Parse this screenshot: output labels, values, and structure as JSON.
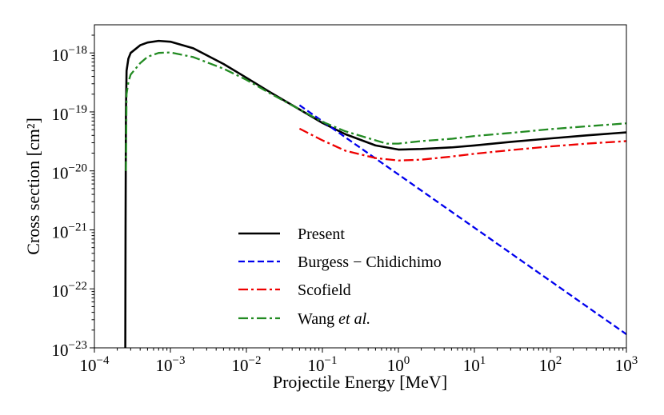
{
  "chart_data": {
    "type": "line",
    "xlabel": "Projectile Energy [MeV]",
    "ylabel": "Cross section [cm²]",
    "xscale": "log",
    "yscale": "log",
    "xlim": [
      0.0001,
      1000
    ],
    "ylim": [
      1e-23,
      3e-18
    ],
    "x_ticks": [
      {
        "base": "10",
        "exp": "−4",
        "value": 0.0001
      },
      {
        "base": "10",
        "exp": "−3",
        "value": 0.001
      },
      {
        "base": "10",
        "exp": "−2",
        "value": 0.01
      },
      {
        "base": "10",
        "exp": "−1",
        "value": 0.1
      },
      {
        "base": "10",
        "exp": "0",
        "value": 1
      },
      {
        "base": "10",
        "exp": "1",
        "value": 10
      },
      {
        "base": "10",
        "exp": "2",
        "value": 100
      },
      {
        "base": "10",
        "exp": "3",
        "value": 1000
      }
    ],
    "y_ticks": [
      {
        "base": "10",
        "exp": "−23",
        "value": 1e-23
      },
      {
        "base": "10",
        "exp": "−22",
        "value": 1e-22
      },
      {
        "base": "10",
        "exp": "−21",
        "value": 1e-21
      },
      {
        "base": "10",
        "exp": "−20",
        "value": 1e-20
      },
      {
        "base": "10",
        "exp": "−19",
        "value": 1e-19
      },
      {
        "base": "10",
        "exp": "−18",
        "value": 1e-18
      }
    ],
    "legend_position": "lower-center",
    "series": [
      {
        "name": "Present",
        "label_main": "Present",
        "label_italic": "",
        "color": "#000000",
        "dash": "solid",
        "points": [
          [
            0.000255,
            1e-23
          ],
          [
            0.000257,
            1e-21
          ],
          [
            0.00026,
            1e-19
          ],
          [
            0.000265,
            5e-19
          ],
          [
            0.00028,
            8e-19
          ],
          [
            0.0003,
            1e-18
          ],
          [
            0.0004,
            1.35e-18
          ],
          [
            0.0005,
            1.5e-18
          ],
          [
            0.0007,
            1.6e-18
          ],
          [
            0.001,
            1.55e-18
          ],
          [
            0.002,
            1.2e-18
          ],
          [
            0.005,
            6.5e-19
          ],
          [
            0.01,
            3.8e-19
          ],
          [
            0.02,
            2.2e-19
          ],
          [
            0.05,
            1.1e-19
          ],
          [
            0.1,
            6.5e-20
          ],
          [
            0.2,
            4.2e-20
          ],
          [
            0.5,
            2.7e-20
          ],
          [
            1,
            2.3e-20
          ],
          [
            2,
            2.35e-20
          ],
          [
            5,
            2.5e-20
          ],
          [
            10,
            2.7e-20
          ],
          [
            30,
            3.1e-20
          ],
          [
            100,
            3.55e-20
          ],
          [
            300,
            4e-20
          ],
          [
            1000,
            4.5e-20
          ]
        ]
      },
      {
        "name": "Burgess − Chidichimo",
        "label_main": "Burgess − Chidichimo",
        "label_italic": "",
        "color": "#0000ee",
        "dash": "dashed",
        "points": [
          [
            0.05,
            1.3e-19
          ],
          [
            1000,
            1.7e-23
          ]
        ]
      },
      {
        "name": "Scofield",
        "label_main": "Scofield",
        "label_italic": "",
        "color": "#ee0000",
        "dash": "dashdot",
        "points": [
          [
            0.05,
            5.2e-20
          ],
          [
            0.1,
            3.3e-20
          ],
          [
            0.2,
            2.2e-20
          ],
          [
            0.5,
            1.65e-20
          ],
          [
            1,
            1.5e-20
          ],
          [
            2,
            1.55e-20
          ],
          [
            5,
            1.75e-20
          ],
          [
            10,
            1.95e-20
          ],
          [
            30,
            2.25e-20
          ],
          [
            100,
            2.6e-20
          ],
          [
            300,
            2.9e-20
          ],
          [
            1000,
            3.2e-20
          ]
        ]
      },
      {
        "name": "Wang et al.",
        "label_main": "Wang ",
        "label_italic": "et al.",
        "color": "#228B22",
        "dash": "dashdot",
        "points": [
          [
            0.00026,
            1e-20
          ],
          [
            0.000265,
            2e-19
          ],
          [
            0.00028,
            3.2e-19
          ],
          [
            0.0003,
            4.3e-19
          ],
          [
            0.0004,
            6.7e-19
          ],
          [
            0.0005,
            8.6e-19
          ],
          [
            0.0007,
            1e-18
          ],
          [
            0.001,
            1.02e-18
          ],
          [
            0.002,
            8.5e-19
          ],
          [
            0.005,
            5.4e-19
          ],
          [
            0.01,
            3.5e-19
          ],
          [
            0.02,
            2.1e-19
          ],
          [
            0.05,
            1.1e-19
          ],
          [
            0.1,
            6.8e-20
          ],
          [
            0.2,
            4.7e-20
          ],
          [
            0.5,
            3.3e-20
          ],
          [
            0.7,
            2.9e-20
          ],
          [
            1,
            2.9e-20
          ],
          [
            2,
            3.2e-20
          ],
          [
            5,
            3.5e-20
          ],
          [
            10,
            3.9e-20
          ],
          [
            30,
            4.4e-20
          ],
          [
            100,
            5.1e-20
          ],
          [
            300,
            5.7e-20
          ],
          [
            1000,
            6.4e-20
          ]
        ]
      }
    ]
  }
}
